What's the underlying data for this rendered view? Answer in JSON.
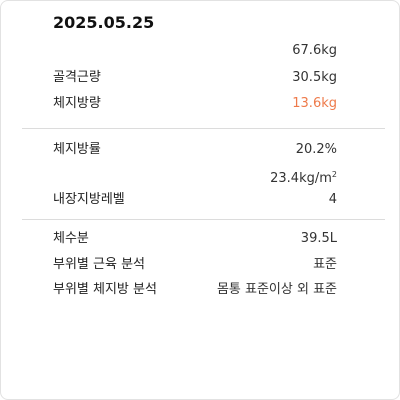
{
  "date": "2025.05.25",
  "section1": {
    "weight": {
      "value": "67.6kg"
    },
    "muscle": {
      "label": "골격근량",
      "value": "30.5kg"
    },
    "fat_mass": {
      "label": "체지방량",
      "value": "13.6kg"
    }
  },
  "section2": {
    "fat_percent": {
      "label": "체지방률",
      "value": "20.2%"
    },
    "bmi": {
      "value_prefix": "23.4kg/m",
      "value_sup": "2"
    },
    "visceral": {
      "label": "내장지방레벨",
      "value": "4"
    }
  },
  "section3": {
    "water": {
      "label": "체수분",
      "value": "39.5L"
    },
    "segment_muscle": {
      "label": "부위별 근육 분석",
      "value": "표준"
    },
    "segment_fat": {
      "label": "부위별 체지방 분석",
      "value": "몸통 표준이상 외 표준"
    }
  },
  "colors": {
    "highlight": "#ee7a4a",
    "divider": "#dcdcdc"
  }
}
